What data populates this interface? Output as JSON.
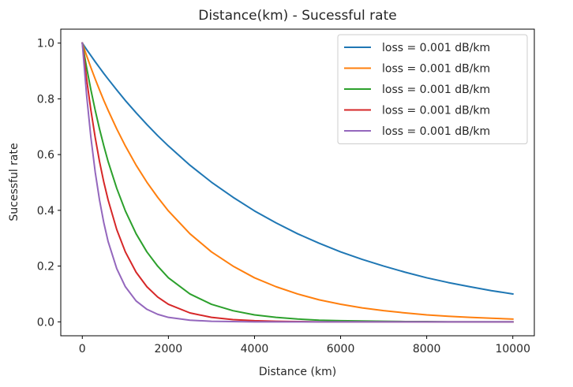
{
  "chart_data": {
    "type": "line",
    "title": "Distance(km) - Sucessful rate",
    "xlabel": "Distance (km)",
    "ylabel": "Sucessful rate",
    "xlim": [
      -500,
      10500
    ],
    "ylim": [
      -0.05,
      1.05
    ],
    "xticks": [
      0,
      2000,
      4000,
      6000,
      8000,
      10000
    ],
    "xtick_labels": [
      "0",
      "2000",
      "4000",
      "6000",
      "8000",
      "10000"
    ],
    "yticks": [
      0.0,
      0.2,
      0.4,
      0.6,
      0.8,
      1.0
    ],
    "ytick_labels": [
      "0.0",
      "0.2",
      "0.4",
      "0.6",
      "0.8",
      "1.0"
    ],
    "grid": false,
    "legend_position": "top-right",
    "x": [
      0,
      100,
      200,
      300,
      400,
      500,
      600,
      800,
      1000,
      1250,
      1500,
      1750,
      2000,
      2500,
      3000,
      3500,
      4000,
      4500,
      5000,
      5500,
      6000,
      6500,
      7000,
      7500,
      8000,
      8500,
      9000,
      9500,
      10000
    ],
    "series": [
      {
        "name": "loss = 0.001 dB/km",
        "color": "#1f77b4",
        "values": [
          1.0,
          0.977,
          0.955,
          0.933,
          0.912,
          0.891,
          0.871,
          0.832,
          0.794,
          0.75,
          0.708,
          0.668,
          0.631,
          0.562,
          0.501,
          0.447,
          0.398,
          0.355,
          0.316,
          0.282,
          0.251,
          0.224,
          0.2,
          0.178,
          0.158,
          0.141,
          0.126,
          0.112,
          0.1
        ]
      },
      {
        "name": "loss = 0.001 dB/km",
        "color": "#ff7f0e",
        "values": [
          1.0,
          0.955,
          0.912,
          0.871,
          0.832,
          0.794,
          0.759,
          0.692,
          0.631,
          0.562,
          0.501,
          0.447,
          0.398,
          0.316,
          0.251,
          0.2,
          0.158,
          0.126,
          0.1,
          0.079,
          0.063,
          0.05,
          0.04,
          0.032,
          0.025,
          0.02,
          0.016,
          0.013,
          0.01
        ]
      },
      {
        "name": "loss = 0.001 dB/km",
        "color": "#2ca02c",
        "values": [
          1.0,
          0.912,
          0.832,
          0.759,
          0.692,
          0.631,
          0.575,
          0.479,
          0.398,
          0.316,
          0.251,
          0.2,
          0.158,
          0.1,
          0.063,
          0.04,
          0.025,
          0.016,
          0.01,
          0.006,
          0.004,
          0.003,
          0.002,
          0.001,
          0.001,
          0.0,
          0.0,
          0.0,
          0.0
        ]
      },
      {
        "name": "loss = 0.001 dB/km",
        "color": "#d62728",
        "values": [
          1.0,
          0.871,
          0.759,
          0.661,
          0.575,
          0.501,
          0.437,
          0.331,
          0.251,
          0.178,
          0.126,
          0.089,
          0.063,
          0.032,
          0.016,
          0.008,
          0.004,
          0.002,
          0.001,
          0.0,
          0.0,
          0.0,
          0.0,
          0.0,
          0.0,
          0.0,
          0.0,
          0.0,
          0.0
        ]
      },
      {
        "name": "loss = 0.001 dB/km",
        "color": "#9467bd",
        "values": [
          1.0,
          0.813,
          0.661,
          0.537,
          0.437,
          0.355,
          0.288,
          0.191,
          0.126,
          0.075,
          0.045,
          0.027,
          0.016,
          0.006,
          0.002,
          0.001,
          0.0,
          0.0,
          0.0,
          0.0,
          0.0,
          0.0,
          0.0,
          0.0,
          0.0,
          0.0,
          0.0,
          0.0,
          0.0
        ]
      }
    ]
  }
}
